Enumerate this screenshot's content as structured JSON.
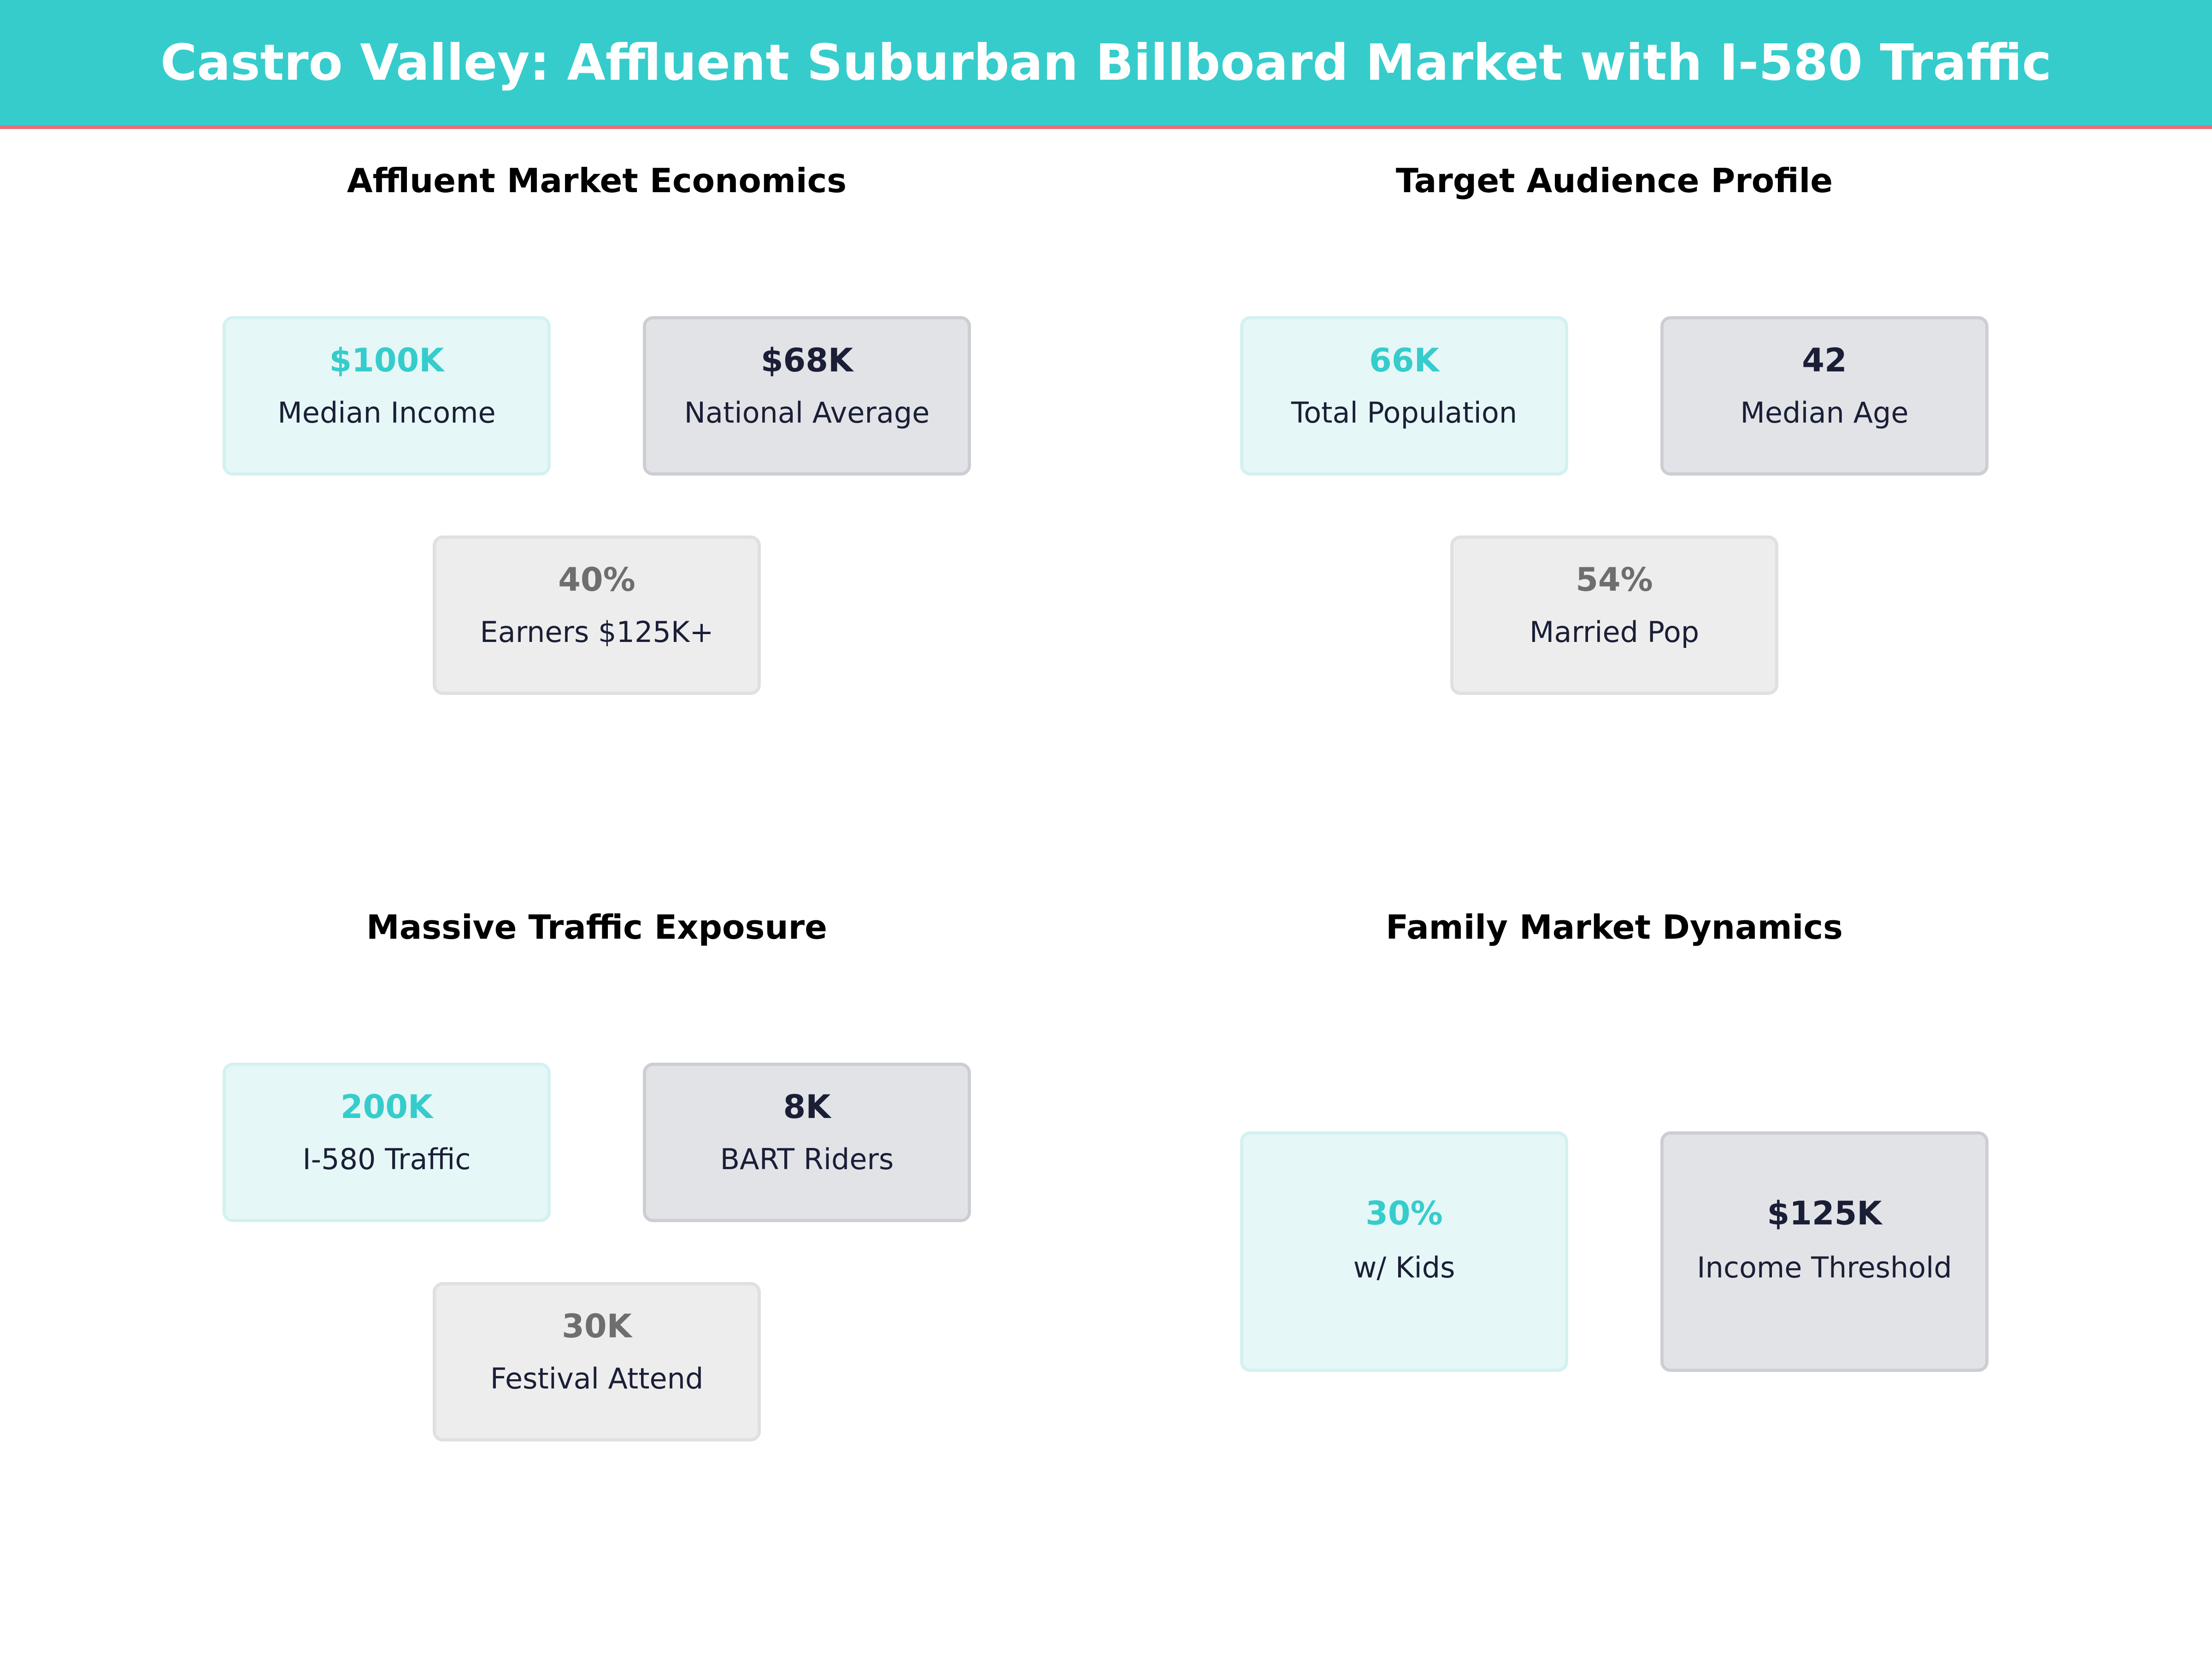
{
  "header": {
    "title": "Castro Valley: Affluent Suburban Billboard Market with I-580 Traffic"
  },
  "panels": {
    "economics": {
      "title": "Affluent Market Economics",
      "cards": [
        {
          "value": "$100K",
          "label": "Median Income"
        },
        {
          "value": "$68K",
          "label": "National Average"
        },
        {
          "value": "40%",
          "label": "Earners $125K+"
        }
      ]
    },
    "audience": {
      "title": "Target Audience Profile",
      "cards": [
        {
          "value": "66K",
          "label": "Total Population"
        },
        {
          "value": "42",
          "label": "Median Age"
        },
        {
          "value": "54%",
          "label": "Married Pop"
        }
      ]
    },
    "traffic": {
      "title": "Massive Traffic Exposure",
      "cards": [
        {
          "value": "200K",
          "label": "I-580 Traffic"
        },
        {
          "value": "8K",
          "label": "BART Riders"
        },
        {
          "value": "30K",
          "label": "Festival Attend"
        }
      ]
    },
    "family": {
      "title": "Family Market Dynamics",
      "cards": [
        {
          "value": "30%",
          "label": "w/ Kids"
        },
        {
          "value": "$125K",
          "label": "Income Threshold"
        }
      ]
    }
  },
  "colors": {
    "header_bg": "#36cccc",
    "header_rule": "#e8707a",
    "accent_teal": "#36cccc",
    "accent_navy": "#1a1f36",
    "accent_grey": "#6e6e6e"
  }
}
